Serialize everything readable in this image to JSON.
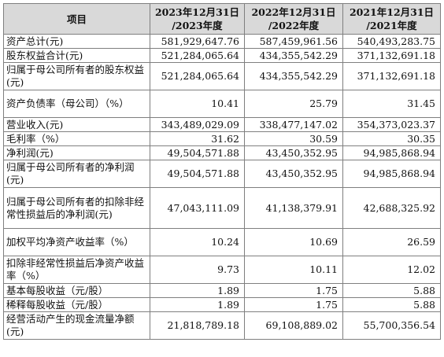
{
  "table": {
    "headers": [
      "项目",
      "2023年12月31日\n/2023年度",
      "2022年12月31日\n/2022年度",
      "2021年12月31日\n/2021年度"
    ],
    "rows": [
      {
        "label": "资产总计(元)",
        "values": [
          "581,929,647.76",
          "587,459,961.56",
          "540,493,283.75"
        ]
      },
      {
        "label": "股东权益合计(元)",
        "values": [
          "521,284,065.64",
          "434,355,542.29",
          "371,132,691.18"
        ]
      },
      {
        "label": "归属于母公司所有者的股东权益(元)",
        "values": [
          "521,284,065.64",
          "434,355,542.29",
          "371,132,691.18"
        ]
      },
      {
        "label": "资产负债率（母公司）（%）",
        "values": [
          "10.41",
          "25.79",
          "31.45"
        ]
      },
      {
        "label": "营业收入(元)",
        "values": [
          "343,489,029.09",
          "338,477,147.02",
          "354,373,023.37"
        ]
      },
      {
        "label": "毛利率（%）",
        "values": [
          "31.62",
          "30.59",
          "30.35"
        ]
      },
      {
        "label": "净利润(元)",
        "values": [
          "49,504,571.88",
          "43,450,352.95",
          "94,985,868.94"
        ]
      },
      {
        "label": "归属于母公司所有者的净利润(元)",
        "values": [
          "49,504,571.88",
          "43,450,352.95",
          "94,985,868.94"
        ]
      },
      {
        "label": "归属于母公司所有者的扣除非经常性损益后的净利润(元)",
        "values": [
          "47,043,111.09",
          "41,138,379.91",
          "42,688,325.92"
        ]
      },
      {
        "label": "加权平均净资产收益率（%）",
        "values": [
          "10.24",
          "10.69",
          "26.59"
        ]
      },
      {
        "label": "扣除非经常性损益后净资产收益率（%）",
        "values": [
          "9.73",
          "10.11",
          "12.02"
        ]
      },
      {
        "label": "基本每股收益（元/股）",
        "values": [
          "1.89",
          "1.75",
          "5.88"
        ]
      },
      {
        "label": "稀释每股收益（元/股）",
        "values": [
          "1.89",
          "1.75",
          "5.88"
        ]
      },
      {
        "label": "经营活动产生的现金流量净额(元)",
        "values": [
          "21,818,789.18",
          "69,108,889.02",
          "55,700,356.54"
        ]
      }
    ]
  }
}
